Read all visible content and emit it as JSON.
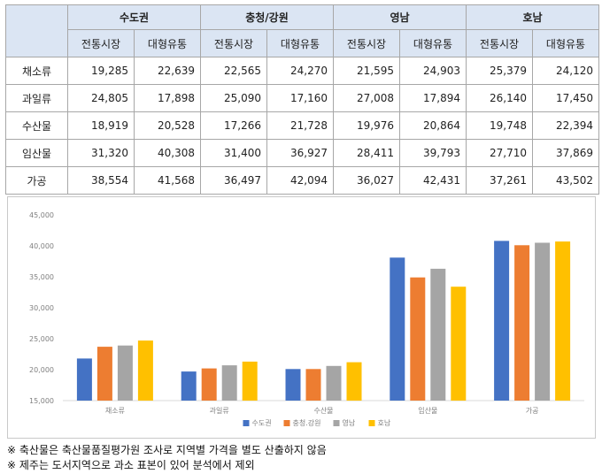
{
  "table": {
    "regions": [
      "수도권",
      "충청/강원",
      "영남",
      "호남"
    ],
    "subheaders": [
      "전통시장",
      "대형유통"
    ],
    "rows": [
      {
        "label": "채소류",
        "values": [
          "19,285",
          "22,639",
          "22,565",
          "24,270",
          "21,595",
          "24,903",
          "25,379",
          "24,120"
        ]
      },
      {
        "label": "과일류",
        "values": [
          "24,805",
          "17,898",
          "25,090",
          "17,160",
          "27,008",
          "17,894",
          "26,140",
          "17,450"
        ]
      },
      {
        "label": "수산물",
        "values": [
          "18,919",
          "20,528",
          "17,266",
          "21,728",
          "19,976",
          "20,864",
          "19,748",
          "22,394"
        ]
      },
      {
        "label": "임산물",
        "values": [
          "31,320",
          "40,308",
          "31,400",
          "36,927",
          "28,411",
          "39,793",
          "27,710",
          "37,869"
        ]
      },
      {
        "label": "가공",
        "values": [
          "38,554",
          "41,568",
          "36,497",
          "42,094",
          "36,027",
          "42,431",
          "37,261",
          "43,502"
        ]
      }
    ]
  },
  "chart_data": {
    "type": "bar",
    "categories": [
      "채소류",
      "과일류",
      "수산물",
      "임산물",
      "가공"
    ],
    "series": [
      {
        "name": "수도권",
        "color": "#4472c4",
        "values": [
          21800,
          19700,
          20100,
          38100,
          40800
        ]
      },
      {
        "name": "충청.강원",
        "color": "#ed7d31",
        "values": [
          23700,
          20200,
          20100,
          34900,
          40100
        ]
      },
      {
        "name": "영남",
        "color": "#a5a5a5",
        "values": [
          23900,
          20700,
          20600,
          36300,
          40500
        ]
      },
      {
        "name": "호남",
        "color": "#ffc000",
        "values": [
          24700,
          21300,
          21200,
          33400,
          40700
        ]
      }
    ],
    "ylim": [
      15000,
      45000
    ],
    "yticks": [
      15000,
      20000,
      25000,
      30000,
      35000,
      40000,
      45000
    ],
    "ytick_labels": [
      "15,000",
      "20,000",
      "25,000",
      "30,000",
      "35,000",
      "40,000",
      "45,000"
    ],
    "grid": false,
    "legend_position": "bottom"
  },
  "notes": [
    "※ 축산물은 축산물품질평가원 조사로 지역별 가격을 별도 산출하지 않음",
    "※ 제주는 도서지역으로 과소 표본이 있어 분석에서 제외"
  ]
}
